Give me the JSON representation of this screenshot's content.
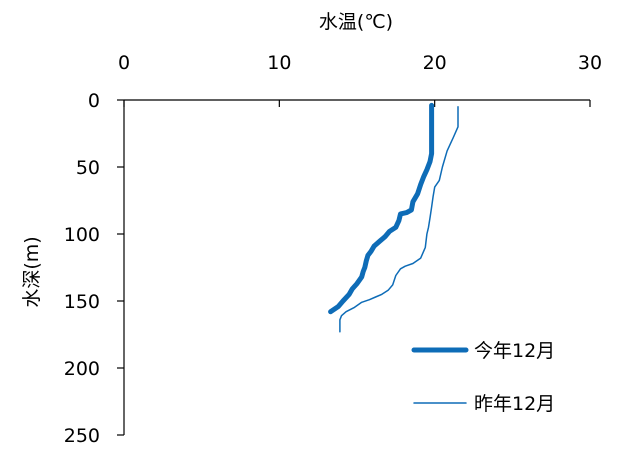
{
  "chart_data": {
    "type": "line",
    "title": "",
    "xlabel": "水温(℃)",
    "ylabel": "水深(m)",
    "x_axis_position": "top",
    "y_axis_inverted": true,
    "xlim": [
      0,
      30
    ],
    "ylim": [
      0,
      250
    ],
    "xticks": [
      "0",
      "10",
      "20",
      "30"
    ],
    "yticks": [
      "0",
      "50",
      "100",
      "150",
      "200",
      "250"
    ],
    "grid": false,
    "legend_position": "bottom-right",
    "series": [
      {
        "name": "今年12月",
        "color": "#0e6cb7",
        "line_style": "thick",
        "points": [
          [
            19.8,
            4
          ],
          [
            19.8,
            20
          ],
          [
            19.8,
            40
          ],
          [
            19.7,
            46
          ],
          [
            19.5,
            52
          ],
          [
            19.3,
            57
          ],
          [
            19.1,
            63
          ],
          [
            18.9,
            70
          ],
          [
            18.6,
            76
          ],
          [
            18.5,
            82
          ],
          [
            18.2,
            84
          ],
          [
            17.8,
            85
          ],
          [
            17.7,
            90
          ],
          [
            17.5,
            95
          ],
          [
            17.1,
            98
          ],
          [
            16.8,
            102
          ],
          [
            16.5,
            105
          ],
          [
            16.1,
            109
          ],
          [
            15.9,
            113
          ],
          [
            15.7,
            116
          ],
          [
            15.6,
            120
          ],
          [
            15.5,
            125
          ],
          [
            15.4,
            128
          ],
          [
            15.3,
            132
          ],
          [
            15.0,
            137
          ],
          [
            14.7,
            141
          ],
          [
            14.5,
            145
          ],
          [
            14.1,
            150
          ],
          [
            13.8,
            154
          ],
          [
            13.3,
            158
          ]
        ]
      },
      {
        "name": "昨年12月",
        "color": "#0e6cb7",
        "line_style": "thin",
        "points": [
          [
            21.5,
            5
          ],
          [
            21.5,
            20
          ],
          [
            21.2,
            28
          ],
          [
            21.0,
            33
          ],
          [
            20.8,
            38
          ],
          [
            20.5,
            50
          ],
          [
            20.3,
            60
          ],
          [
            20.0,
            65
          ],
          [
            19.9,
            72
          ],
          [
            19.8,
            80
          ],
          [
            19.7,
            88
          ],
          [
            19.6,
            95
          ],
          [
            19.5,
            100
          ],
          [
            19.4,
            110
          ],
          [
            19.1,
            118
          ],
          [
            18.6,
            122
          ],
          [
            18.1,
            124
          ],
          [
            17.8,
            126
          ],
          [
            17.5,
            131
          ],
          [
            17.3,
            138
          ],
          [
            17.0,
            142
          ],
          [
            16.6,
            145
          ],
          [
            16.2,
            147
          ],
          [
            15.8,
            149
          ],
          [
            15.3,
            151
          ],
          [
            14.8,
            155
          ],
          [
            14.3,
            158
          ],
          [
            14.0,
            161
          ],
          [
            13.9,
            164
          ],
          [
            13.9,
            170
          ],
          [
            13.9,
            173
          ]
        ]
      }
    ]
  }
}
